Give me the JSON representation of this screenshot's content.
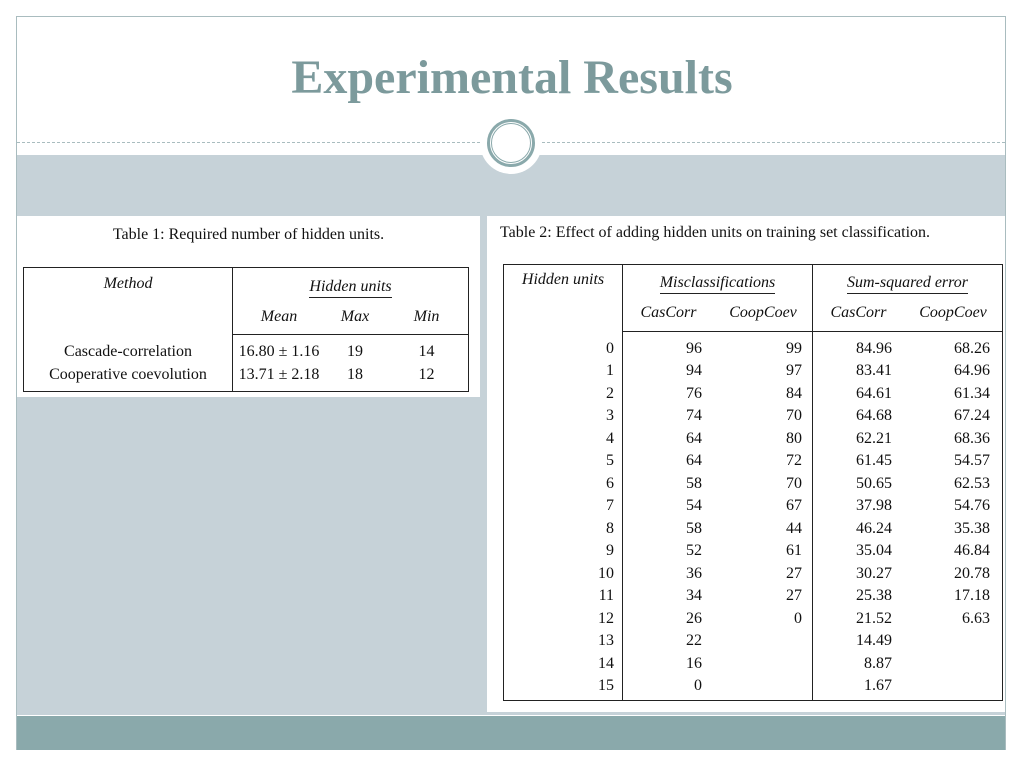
{
  "slide": {
    "title": "Experimental Results"
  },
  "colors": {
    "title": "#7c9a9c",
    "band": "#c6d2d8",
    "bottom_bar": "#8aa9ab",
    "frame": "#a9bcbf"
  },
  "table1": {
    "caption": "Table 1: Required number of hidden units.",
    "header": {
      "method": "Method",
      "group": "Hidden units",
      "mean": "Mean",
      "max": "Max",
      "min": "Min"
    },
    "rows": [
      {
        "method": "Cascade-correlation",
        "mean": "16.80 ± 1.16",
        "max": "19",
        "min": "14"
      },
      {
        "method": "Cooperative coevolution",
        "mean": "13.71 ± 2.18",
        "max": "18",
        "min": "12"
      }
    ]
  },
  "table2": {
    "caption": "Table 2: Effect of adding hidden units on training set classification.",
    "header": {
      "hidden_units": "Hidden units",
      "misclassifications": "Misclassifications",
      "sse": "Sum-squared error",
      "cascorr_1": "CasCorr",
      "coopcoev_1": "CoopCoev",
      "cascorr_2": "CasCorr",
      "coopcoev_2": "CoopCoev"
    },
    "rows": [
      {
        "hu": "0",
        "mc_cas": "96",
        "mc_coop": "99",
        "sse_cas": "84.96",
        "sse_coop": "68.26"
      },
      {
        "hu": "1",
        "mc_cas": "94",
        "mc_coop": "97",
        "sse_cas": "83.41",
        "sse_coop": "64.96"
      },
      {
        "hu": "2",
        "mc_cas": "76",
        "mc_coop": "84",
        "sse_cas": "64.61",
        "sse_coop": "61.34"
      },
      {
        "hu": "3",
        "mc_cas": "74",
        "mc_coop": "70",
        "sse_cas": "64.68",
        "sse_coop": "67.24"
      },
      {
        "hu": "4",
        "mc_cas": "64",
        "mc_coop": "80",
        "sse_cas": "62.21",
        "sse_coop": "68.36"
      },
      {
        "hu": "5",
        "mc_cas": "64",
        "mc_coop": "72",
        "sse_cas": "61.45",
        "sse_coop": "54.57"
      },
      {
        "hu": "6",
        "mc_cas": "58",
        "mc_coop": "70",
        "sse_cas": "50.65",
        "sse_coop": "62.53"
      },
      {
        "hu": "7",
        "mc_cas": "54",
        "mc_coop": "67",
        "sse_cas": "37.98",
        "sse_coop": "54.76"
      },
      {
        "hu": "8",
        "mc_cas": "58",
        "mc_coop": "44",
        "sse_cas": "46.24",
        "sse_coop": "35.38"
      },
      {
        "hu": "9",
        "mc_cas": "52",
        "mc_coop": "61",
        "sse_cas": "35.04",
        "sse_coop": "46.84"
      },
      {
        "hu": "10",
        "mc_cas": "36",
        "mc_coop": "27",
        "sse_cas": "30.27",
        "sse_coop": "20.78"
      },
      {
        "hu": "11",
        "mc_cas": "34",
        "mc_coop": "27",
        "sse_cas": "25.38",
        "sse_coop": "17.18"
      },
      {
        "hu": "12",
        "mc_cas": "26",
        "mc_coop": "0",
        "sse_cas": "21.52",
        "sse_coop": "6.63"
      },
      {
        "hu": "13",
        "mc_cas": "22",
        "mc_coop": "",
        "sse_cas": "14.49",
        "sse_coop": ""
      },
      {
        "hu": "14",
        "mc_cas": "16",
        "mc_coop": "",
        "sse_cas": "8.87",
        "sse_coop": ""
      },
      {
        "hu": "15",
        "mc_cas": "0",
        "mc_coop": "",
        "sse_cas": "1.67",
        "sse_coop": ""
      }
    ]
  }
}
